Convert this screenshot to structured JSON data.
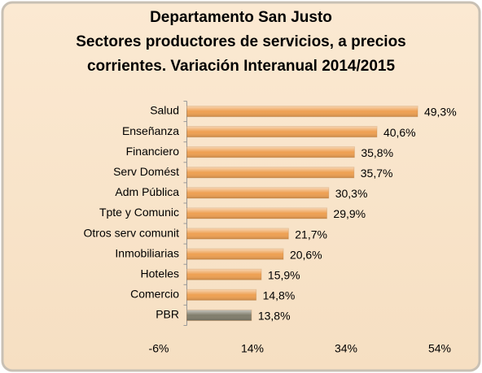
{
  "chart_data": {
    "type": "bar",
    "orientation": "horizontal",
    "title": [
      "Departamento San Justo",
      "Sectores productores de servicios, a precios",
      "corrientes. Variación Interanual 2014/2015"
    ],
    "categories": [
      "Salud",
      "Enseñanza",
      "Financiero",
      "Serv Domést",
      "Adm Pública",
      "Tpte y Comunic",
      "Otros serv comunit",
      "Inmobiliarias",
      "Hoteles",
      "Comercio",
      "PBR"
    ],
    "values": [
      49.3,
      40.6,
      35.8,
      35.7,
      30.3,
      29.9,
      21.7,
      20.6,
      15.9,
      14.8,
      13.8
    ],
    "value_labels": [
      "49,3%",
      "40,6%",
      "35,8%",
      "35,7%",
      "30,3%",
      "29,9%",
      "21,7%",
      "20,6%",
      "15,9%",
      "14,8%",
      "13,8%"
    ],
    "colors": [
      "#eea052",
      "#eea052",
      "#eea052",
      "#eea052",
      "#eea052",
      "#eea052",
      "#eea052",
      "#eea052",
      "#eea052",
      "#eea052",
      "#807d6c"
    ],
    "xlim": [
      -6,
      54
    ],
    "xticks": [
      {
        "value": -6,
        "label": "-6%"
      },
      {
        "value": 14,
        "label": "14%"
      },
      {
        "value": 34,
        "label": "34%"
      },
      {
        "value": 54,
        "label": "54%"
      }
    ],
    "grid": false
  }
}
